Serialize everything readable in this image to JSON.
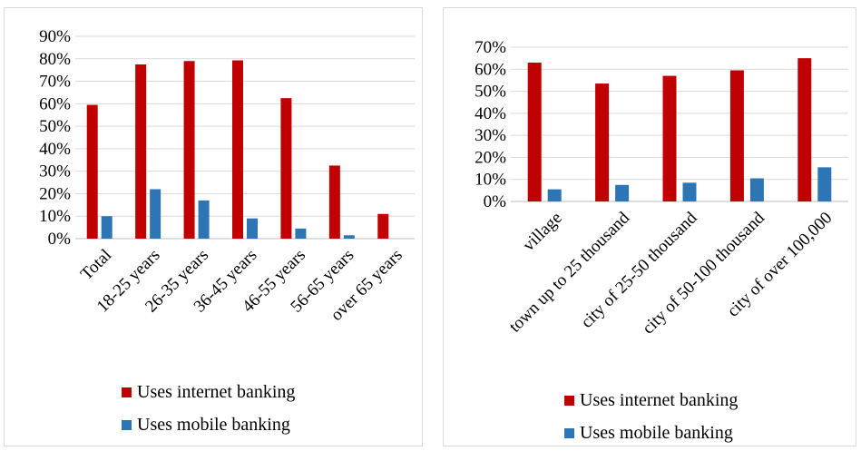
{
  "colors": {
    "internet": "#C00000",
    "mobile": "#2E75B6",
    "grid": "#d9d9d9"
  },
  "chart_data": [
    {
      "type": "bar",
      "categories": [
        "Total",
        "18-25 years",
        "26-35 years",
        "36-45 years",
        "46-55 years",
        "56-65 years",
        "over 65 years"
      ],
      "series": [
        {
          "name": "Uses internet banking",
          "values": [
            59.5,
            77.5,
            79,
            79.3,
            62.5,
            32.5,
            11
          ]
        },
        {
          "name": "Uses mobile banking",
          "values": [
            10,
            22,
            17,
            9,
            4.5,
            1.5,
            0
          ]
        }
      ],
      "yticks": [
        "0%",
        "10%",
        "20%",
        "30%",
        "40%",
        "50%",
        "60%",
        "70%",
        "80%",
        "90%"
      ],
      "ylim": [
        0,
        90
      ],
      "grid": true,
      "legend": "bottom"
    },
    {
      "type": "bar",
      "categories": [
        "village",
        "town up to 25 thousand",
        "city of 25-50 thousand",
        "city of 50-100 thousand",
        "city of over 100,000"
      ],
      "series": [
        {
          "name": "Uses internet banking",
          "values": [
            63,
            53.5,
            57,
            59.5,
            65
          ]
        },
        {
          "name": "Uses mobile banking",
          "values": [
            5.5,
            7.5,
            8.5,
            10.5,
            15.5
          ]
        }
      ],
      "yticks": [
        "0%",
        "10%",
        "20%",
        "30%",
        "40%",
        "50%",
        "60%",
        "70%"
      ],
      "ylim": [
        0,
        70
      ],
      "grid": true,
      "legend": "bottom"
    }
  ]
}
